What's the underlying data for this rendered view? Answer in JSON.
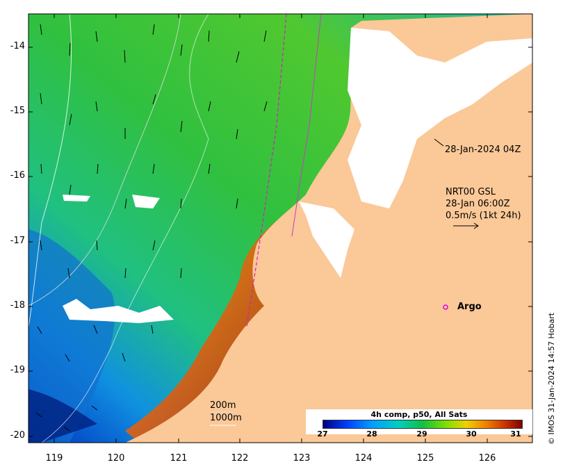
{
  "map": {
    "x_ticks": [
      "119",
      "120",
      "121",
      "122",
      "123",
      "124",
      "125",
      "126"
    ],
    "y_ticks": [
      "-14",
      "-15",
      "-16",
      "-17",
      "-18",
      "-19",
      "-20"
    ],
    "lon_range": [
      118.6,
      126.7
    ],
    "lat_range": [
      -20.1,
      -13.5
    ]
  },
  "annotations": {
    "argo_timestamp": "28-Jan-2024 04Z",
    "nrt_title": "NRT00 GSL",
    "nrt_time": "28-Jan 06:00Z",
    "nrt_scale": "0.5m/s (1kt 24h)",
    "argo_label": "Argo",
    "depth_200": "200m",
    "depth_1000": "1000m"
  },
  "legend": {
    "title": "4h comp, p50, All Sats",
    "ticks": [
      "27",
      "28",
      "29",
      "30",
      "31"
    ]
  },
  "copyright": "© IMOS 31-Jan-2024 14:57 Hobart",
  "colors": {
    "land": "#fbc898",
    "ocean_warm": "#e07010",
    "ocean_mid": "#30c040",
    "ocean_cool": "#10a0e0",
    "argo": "#e000e0"
  }
}
